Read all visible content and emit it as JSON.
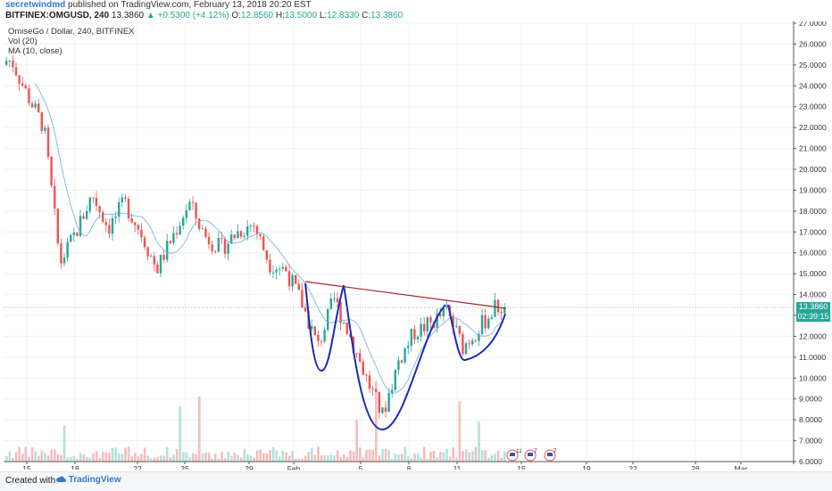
{
  "header": {
    "author": "secretwindmd",
    "published_text": "published on TradingView.com, February 13, 2018 20:20 EST",
    "symbol": "BITFINEX:OMGUSD, 240",
    "last": "13.3860",
    "change": "▲ +0.5300 (+4.12%)",
    "o_label": "O:",
    "o_value": "12.8560",
    "h_label": "H:",
    "h_value": "13.5000",
    "l_label": "L:",
    "l_value": "12.8330",
    "c_label": "C:",
    "c_value": "13.3860"
  },
  "legend": {
    "title": "OmiseGo / Dollar, 240, BITFINEX",
    "vol": "Vol (20)",
    "ma": "MA (10, close)"
  },
  "price_tags": {
    "last": "13.3860",
    "countdown": "02:39:15"
  },
  "footer": {
    "created_with": "Created with",
    "brand": "TradingView"
  },
  "event_badges": [
    "11",
    "7",
    "7"
  ],
  "colors": {
    "up": "#26a69a",
    "down": "#ef5350",
    "ma": "#6fa8dc",
    "pattern": "#1a2ab4",
    "neckline": "#a02a2a"
  },
  "chart_data": {
    "type": "candlestick",
    "ylim": [
      6.0,
      27.0
    ],
    "y_ticks": [
      "27.0000",
      "26.0000",
      "25.0000",
      "24.0000",
      "23.0000",
      "22.0000",
      "21.0000",
      "20.0000",
      "19.0000",
      "18.0000",
      "17.0000",
      "16.0000",
      "15.0000",
      "14.0000",
      "13.0000",
      "12.0000",
      "11.0000",
      "10.0000",
      "9.0000",
      "8.0000",
      "7.0000",
      "6.0000"
    ],
    "x_ticks": [
      "15",
      "18",
      "22",
      "25",
      "29",
      "Feb",
      "5",
      "8",
      "11",
      "15",
      "19",
      "22",
      "26",
      "Mar"
    ],
    "series": [
      {
        "name": "price_path",
        "x": [
          "Jan 14",
          "Jan 15",
          "Jan 16",
          "Jan 17",
          "Jan 18",
          "Jan 19",
          "Jan 20",
          "Jan 21",
          "Jan 22",
          "Jan 23",
          "Jan 24",
          "Jan 25",
          "Jan 26",
          "Jan 27",
          "Jan 28",
          "Jan 29",
          "Jan 30",
          "Jan 31",
          "Feb 1",
          "Feb 2",
          "Feb 3",
          "Feb 4",
          "Feb 5",
          "Feb 6",
          "Feb 7",
          "Feb 8",
          "Feb 9",
          "Feb 10",
          "Feb 11",
          "Feb 12",
          "Feb 13"
        ],
        "values": [
          25.2,
          23.5,
          22.0,
          15.5,
          17.0,
          18.8,
          17.2,
          18.4,
          17.0,
          15.2,
          16.8,
          18.4,
          16.8,
          16.2,
          17.0,
          17.4,
          15.5,
          15.2,
          13.6,
          11.5,
          13.8,
          12.0,
          10.0,
          8.2,
          10.8,
          12.2,
          12.6,
          13.2,
          11.5,
          12.4,
          13.39
        ]
      }
    ],
    "last_price": 13.386
  }
}
